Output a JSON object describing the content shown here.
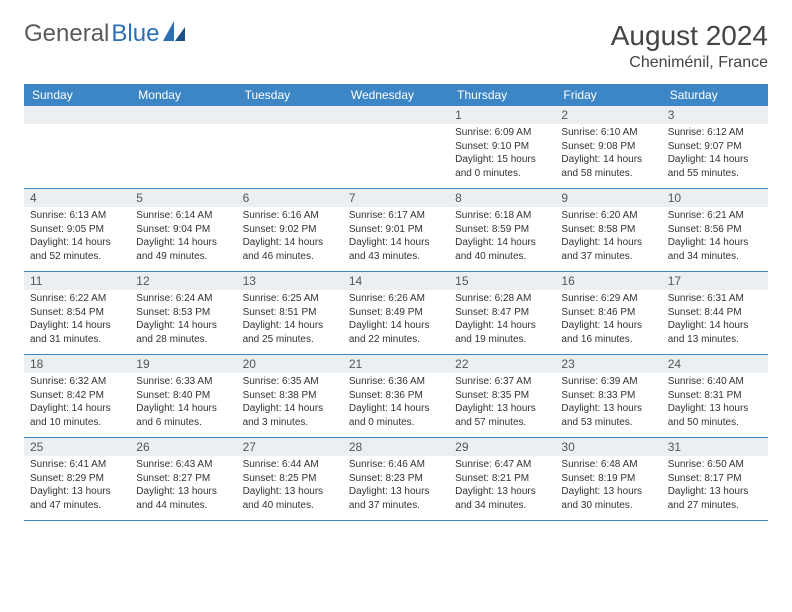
{
  "logo": {
    "text1": "General",
    "text2": "Blue"
  },
  "title": "August 2024",
  "location": "Cheniménil, France",
  "colors": {
    "header_bg": "#3d86c6",
    "header_text": "#ffffff",
    "daynum_bg": "#eceff1",
    "border": "#3d86c6",
    "logo_gray": "#5a5a5a",
    "logo_blue": "#2d6fb5"
  },
  "weekdays": [
    "Sunday",
    "Monday",
    "Tuesday",
    "Wednesday",
    "Thursday",
    "Friday",
    "Saturday"
  ],
  "weeks": [
    [
      {
        "blank": true
      },
      {
        "blank": true
      },
      {
        "blank": true
      },
      {
        "blank": true
      },
      {
        "day": "1",
        "sunrise": "Sunrise: 6:09 AM",
        "sunset": "Sunset: 9:10 PM",
        "daylight": "Daylight: 15 hours and 0 minutes."
      },
      {
        "day": "2",
        "sunrise": "Sunrise: 6:10 AM",
        "sunset": "Sunset: 9:08 PM",
        "daylight": "Daylight: 14 hours and 58 minutes."
      },
      {
        "day": "3",
        "sunrise": "Sunrise: 6:12 AM",
        "sunset": "Sunset: 9:07 PM",
        "daylight": "Daylight: 14 hours and 55 minutes."
      }
    ],
    [
      {
        "day": "4",
        "sunrise": "Sunrise: 6:13 AM",
        "sunset": "Sunset: 9:05 PM",
        "daylight": "Daylight: 14 hours and 52 minutes."
      },
      {
        "day": "5",
        "sunrise": "Sunrise: 6:14 AM",
        "sunset": "Sunset: 9:04 PM",
        "daylight": "Daylight: 14 hours and 49 minutes."
      },
      {
        "day": "6",
        "sunrise": "Sunrise: 6:16 AM",
        "sunset": "Sunset: 9:02 PM",
        "daylight": "Daylight: 14 hours and 46 minutes."
      },
      {
        "day": "7",
        "sunrise": "Sunrise: 6:17 AM",
        "sunset": "Sunset: 9:01 PM",
        "daylight": "Daylight: 14 hours and 43 minutes."
      },
      {
        "day": "8",
        "sunrise": "Sunrise: 6:18 AM",
        "sunset": "Sunset: 8:59 PM",
        "daylight": "Daylight: 14 hours and 40 minutes."
      },
      {
        "day": "9",
        "sunrise": "Sunrise: 6:20 AM",
        "sunset": "Sunset: 8:58 PM",
        "daylight": "Daylight: 14 hours and 37 minutes."
      },
      {
        "day": "10",
        "sunrise": "Sunrise: 6:21 AM",
        "sunset": "Sunset: 8:56 PM",
        "daylight": "Daylight: 14 hours and 34 minutes."
      }
    ],
    [
      {
        "day": "11",
        "sunrise": "Sunrise: 6:22 AM",
        "sunset": "Sunset: 8:54 PM",
        "daylight": "Daylight: 14 hours and 31 minutes."
      },
      {
        "day": "12",
        "sunrise": "Sunrise: 6:24 AM",
        "sunset": "Sunset: 8:53 PM",
        "daylight": "Daylight: 14 hours and 28 minutes."
      },
      {
        "day": "13",
        "sunrise": "Sunrise: 6:25 AM",
        "sunset": "Sunset: 8:51 PM",
        "daylight": "Daylight: 14 hours and 25 minutes."
      },
      {
        "day": "14",
        "sunrise": "Sunrise: 6:26 AM",
        "sunset": "Sunset: 8:49 PM",
        "daylight": "Daylight: 14 hours and 22 minutes."
      },
      {
        "day": "15",
        "sunrise": "Sunrise: 6:28 AM",
        "sunset": "Sunset: 8:47 PM",
        "daylight": "Daylight: 14 hours and 19 minutes."
      },
      {
        "day": "16",
        "sunrise": "Sunrise: 6:29 AM",
        "sunset": "Sunset: 8:46 PM",
        "daylight": "Daylight: 14 hours and 16 minutes."
      },
      {
        "day": "17",
        "sunrise": "Sunrise: 6:31 AM",
        "sunset": "Sunset: 8:44 PM",
        "daylight": "Daylight: 14 hours and 13 minutes."
      }
    ],
    [
      {
        "day": "18",
        "sunrise": "Sunrise: 6:32 AM",
        "sunset": "Sunset: 8:42 PM",
        "daylight": "Daylight: 14 hours and 10 minutes."
      },
      {
        "day": "19",
        "sunrise": "Sunrise: 6:33 AM",
        "sunset": "Sunset: 8:40 PM",
        "daylight": "Daylight: 14 hours and 6 minutes."
      },
      {
        "day": "20",
        "sunrise": "Sunrise: 6:35 AM",
        "sunset": "Sunset: 8:38 PM",
        "daylight": "Daylight: 14 hours and 3 minutes."
      },
      {
        "day": "21",
        "sunrise": "Sunrise: 6:36 AM",
        "sunset": "Sunset: 8:36 PM",
        "daylight": "Daylight: 14 hours and 0 minutes."
      },
      {
        "day": "22",
        "sunrise": "Sunrise: 6:37 AM",
        "sunset": "Sunset: 8:35 PM",
        "daylight": "Daylight: 13 hours and 57 minutes."
      },
      {
        "day": "23",
        "sunrise": "Sunrise: 6:39 AM",
        "sunset": "Sunset: 8:33 PM",
        "daylight": "Daylight: 13 hours and 53 minutes."
      },
      {
        "day": "24",
        "sunrise": "Sunrise: 6:40 AM",
        "sunset": "Sunset: 8:31 PM",
        "daylight": "Daylight: 13 hours and 50 minutes."
      }
    ],
    [
      {
        "day": "25",
        "sunrise": "Sunrise: 6:41 AM",
        "sunset": "Sunset: 8:29 PM",
        "daylight": "Daylight: 13 hours and 47 minutes."
      },
      {
        "day": "26",
        "sunrise": "Sunrise: 6:43 AM",
        "sunset": "Sunset: 8:27 PM",
        "daylight": "Daylight: 13 hours and 44 minutes."
      },
      {
        "day": "27",
        "sunrise": "Sunrise: 6:44 AM",
        "sunset": "Sunset: 8:25 PM",
        "daylight": "Daylight: 13 hours and 40 minutes."
      },
      {
        "day": "28",
        "sunrise": "Sunrise: 6:46 AM",
        "sunset": "Sunset: 8:23 PM",
        "daylight": "Daylight: 13 hours and 37 minutes."
      },
      {
        "day": "29",
        "sunrise": "Sunrise: 6:47 AM",
        "sunset": "Sunset: 8:21 PM",
        "daylight": "Daylight: 13 hours and 34 minutes."
      },
      {
        "day": "30",
        "sunrise": "Sunrise: 6:48 AM",
        "sunset": "Sunset: 8:19 PM",
        "daylight": "Daylight: 13 hours and 30 minutes."
      },
      {
        "day": "31",
        "sunrise": "Sunrise: 6:50 AM",
        "sunset": "Sunset: 8:17 PM",
        "daylight": "Daylight: 13 hours and 27 minutes."
      }
    ]
  ]
}
